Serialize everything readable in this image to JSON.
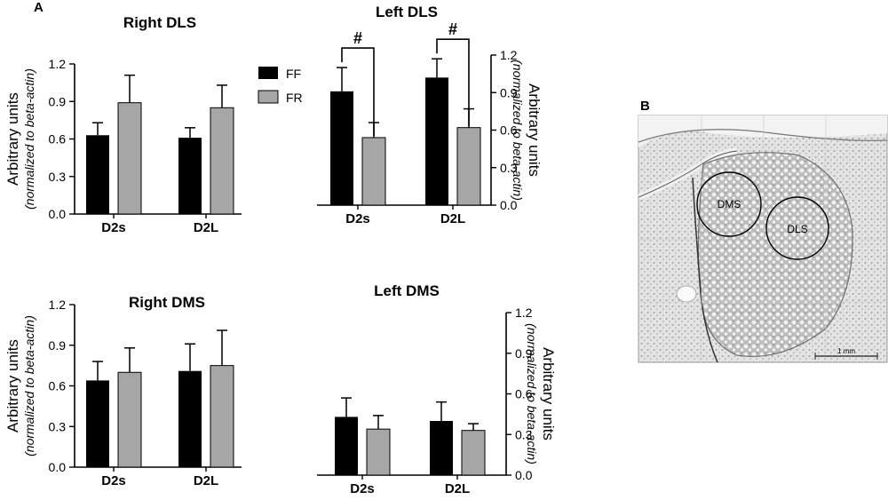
{
  "figure": {
    "panel_a_letter": "A",
    "panel_b_letter": "B",
    "legend": [
      {
        "name": "FF",
        "color": "#000000"
      },
      {
        "name": "FR",
        "color": "#a6a6a6"
      }
    ],
    "ylabel_main": "Arbitrary units",
    "ylabel_sub": "(normalized to beta-actin)",
    "significance_marker": "#"
  },
  "micrograph": {
    "regions": [
      "DMS",
      "DLS"
    ],
    "scale_bar_label": "1 mm"
  },
  "chart_data": [
    {
      "type": "bar",
      "id": "right-dls",
      "title": "Right DLS",
      "categories": [
        "D2s",
        "D2L"
      ],
      "ylim": [
        0,
        1.2
      ],
      "yticks": [
        "0.0",
        "0.3",
        "0.6",
        "0.9",
        "1.2"
      ],
      "axis_side": "left",
      "series": [
        {
          "name": "FF",
          "values": [
            0.63,
            0.61
          ],
          "errors": [
            0.1,
            0.08
          ]
        },
        {
          "name": "FR",
          "values": [
            0.89,
            0.85
          ],
          "errors": [
            0.22,
            0.18
          ]
        }
      ]
    },
    {
      "type": "bar",
      "id": "left-dls",
      "title": "Left  DLS",
      "categories": [
        "D2s",
        "D2L"
      ],
      "ylim": [
        0,
        1.2
      ],
      "yticks": [
        "0.0",
        "0.3",
        "0.6",
        "0.9",
        "1.2"
      ],
      "axis_side": "right",
      "series": [
        {
          "name": "FF",
          "values": [
            0.91,
            1.02
          ],
          "errors": [
            0.19,
            0.15
          ]
        },
        {
          "name": "FR",
          "values": [
            0.54,
            0.62
          ],
          "errors": [
            0.12,
            0.15
          ]
        }
      ],
      "significance": [
        {
          "category": "D2s",
          "marker": "#"
        },
        {
          "category": "D2L",
          "marker": "#"
        }
      ]
    },
    {
      "type": "bar",
      "id": "right-dms",
      "title": "Right DMS",
      "categories": [
        "D2s",
        "D2L"
      ],
      "ylim": [
        0,
        1.2
      ],
      "yticks": [
        "0.0",
        "0.3",
        "0.6",
        "0.9",
        "1.2"
      ],
      "axis_side": "left",
      "series": [
        {
          "name": "FF",
          "values": [
            0.64,
            0.71
          ],
          "errors": [
            0.14,
            0.2
          ]
        },
        {
          "name": "FR",
          "values": [
            0.7,
            0.75
          ],
          "errors": [
            0.18,
            0.26
          ]
        }
      ]
    },
    {
      "type": "bar",
      "id": "left-dms",
      "title": "Left DMS",
      "categories": [
        "D2s",
        "D2L"
      ],
      "ylim": [
        0,
        1.2
      ],
      "yticks": [
        "0.0",
        "0.3",
        "0.6",
        "0.9",
        "1.2"
      ],
      "axis_side": "right",
      "series": [
        {
          "name": "FF",
          "values": [
            0.43,
            0.4
          ],
          "errors": [
            0.14,
            0.14
          ]
        },
        {
          "name": "FR",
          "values": [
            0.34,
            0.33
          ],
          "errors": [
            0.1,
            0.05
          ]
        }
      ]
    }
  ]
}
